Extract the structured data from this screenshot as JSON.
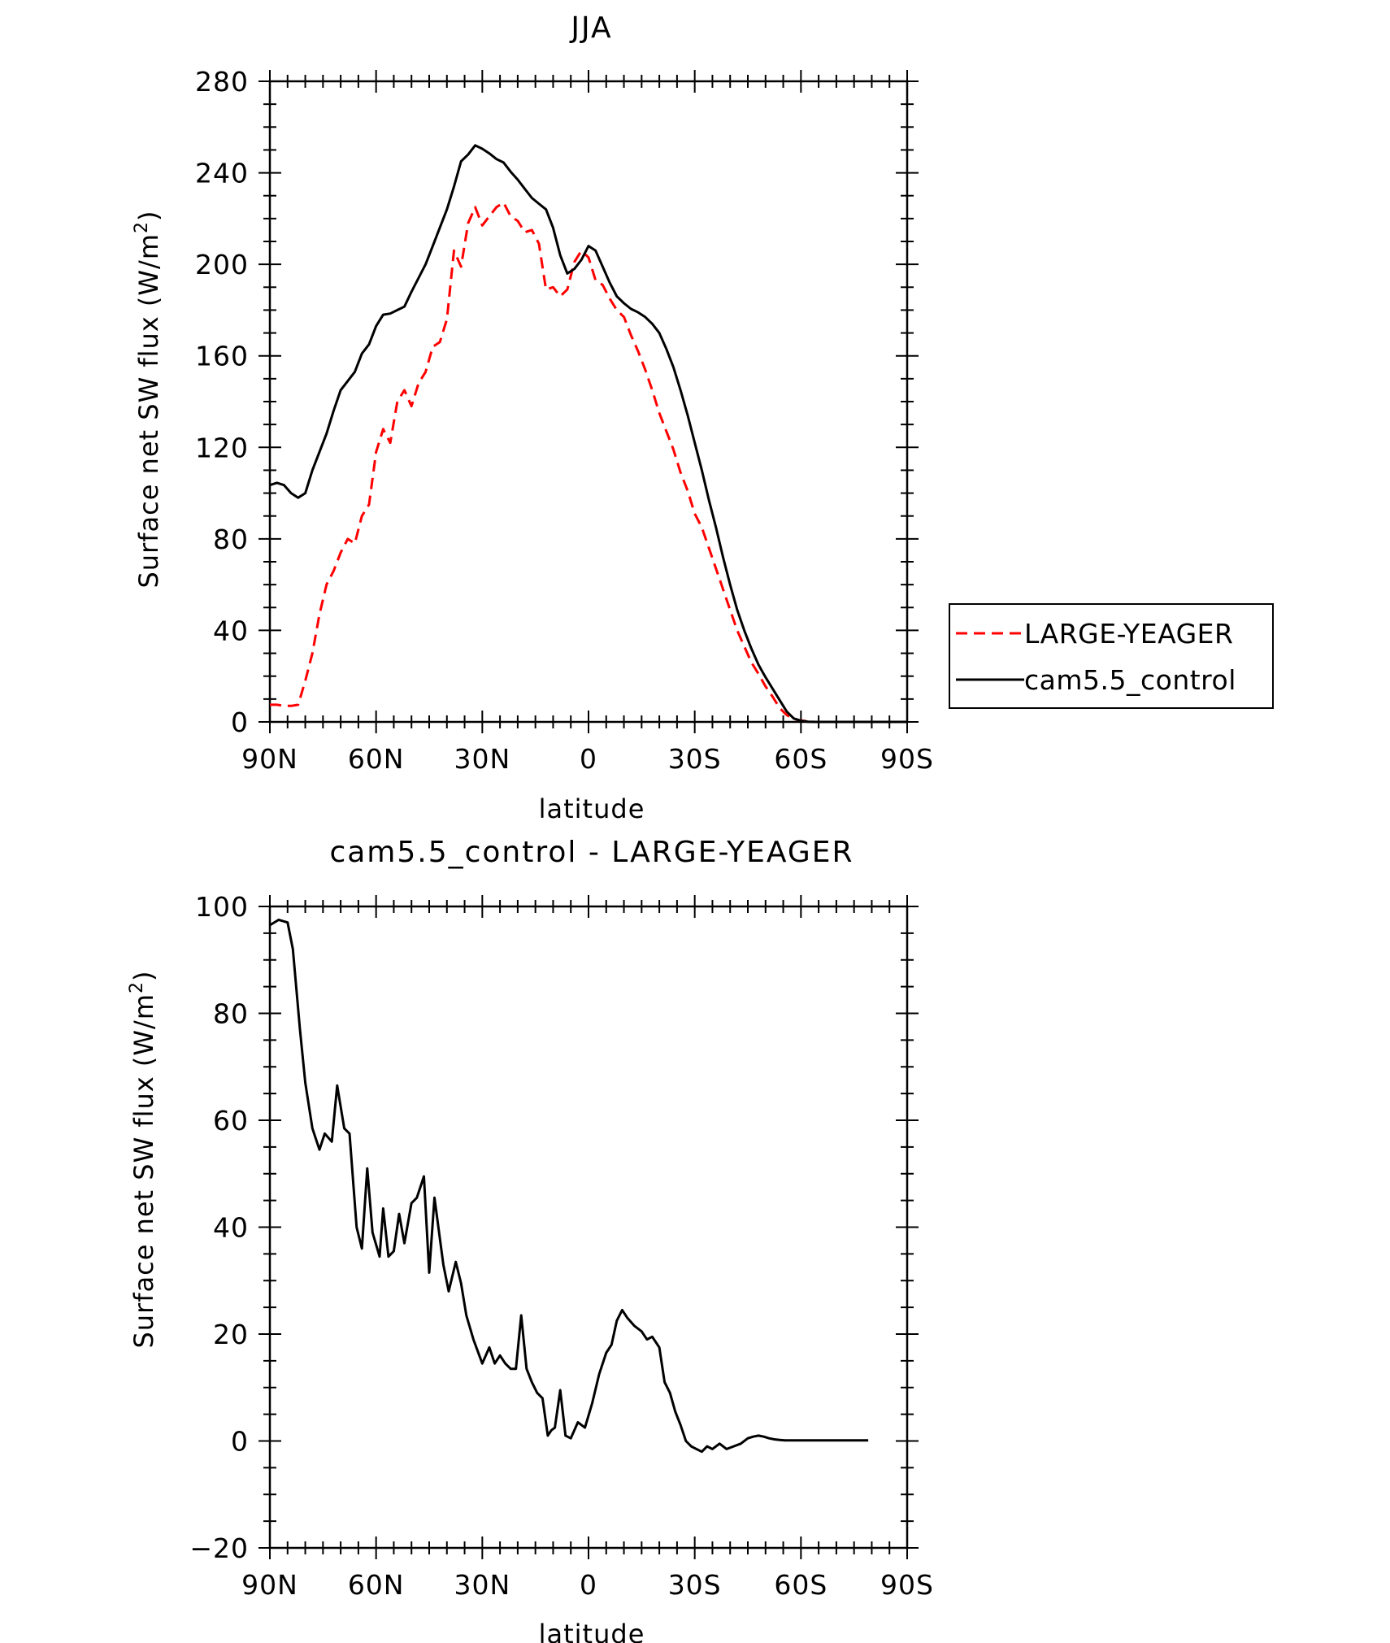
{
  "chart_data": [
    {
      "type": "line",
      "title": "JJA",
      "xlabel": "latitude",
      "ylabel": "Surface net SW flux (W/m",
      "ylabel_sup": "2",
      "ylabel_close": ")",
      "xlim": [
        90,
        -90
      ],
      "ylim": [
        0,
        280
      ],
      "xticks": [
        90,
        60,
        30,
        0,
        -30,
        -60,
        -90
      ],
      "xtick_labels": [
        "90N",
        "60N",
        "30N",
        "0",
        "30S",
        "60S",
        "90S"
      ],
      "yticks": [
        0,
        40,
        80,
        120,
        160,
        200,
        240,
        280
      ],
      "ytick_labels": [
        "0",
        "40",
        "80",
        "120",
        "160",
        "200",
        "240",
        "280"
      ],
      "legend": {
        "placement": "right",
        "entries": [
          "LARGE-YEAGER",
          "cam5.5_control"
        ]
      },
      "series": [
        {
          "name": "LARGE-YEAGER",
          "color": "#ff0000",
          "dash": "dashed",
          "x": [
            90,
            88,
            86,
            84,
            82,
            80,
            78,
            76,
            74,
            72,
            70,
            68,
            66,
            64,
            62,
            60,
            58,
            56,
            54,
            52,
            50,
            48,
            46,
            44,
            42,
            40,
            38,
            36,
            34,
            32,
            30,
            28,
            26,
            24,
            22,
            20,
            18,
            16,
            14,
            12,
            10,
            8,
            6,
            4,
            2,
            0,
            -2,
            -4,
            -6,
            -8,
            -10,
            -12,
            -14,
            -16,
            -18,
            -20,
            -22,
            -24,
            -26,
            -28,
            -30,
            -32,
            -34,
            -36,
            -38,
            -40,
            -42,
            -44,
            -46,
            -48,
            -50,
            -52,
            -54,
            -56,
            -58,
            -60,
            -62,
            -64,
            -66,
            -68,
            -70,
            -72,
            -74,
            -76,
            -78,
            -80,
            -82,
            -84,
            -86,
            -88,
            -90
          ],
          "y": [
            7.5,
            7.5,
            7,
            7,
            7.5,
            18,
            30,
            47,
            60,
            66,
            74,
            80,
            78,
            90,
            95,
            118,
            128,
            122,
            140,
            145,
            138,
            148,
            153,
            164,
            166,
            176,
            206,
            199,
            218,
            225,
            217,
            221,
            225,
            227,
            221,
            219,
            214,
            215,
            209,
            189,
            190,
            186,
            189,
            201,
            206,
            203,
            193,
            191,
            185,
            180,
            177,
            169,
            162,
            154,
            145,
            135,
            127,
            119,
            109,
            101,
            91,
            85,
            76,
            67,
            58,
            49,
            40,
            33,
            26,
            21,
            15.5,
            11,
            6,
            3,
            1.3,
            0.6,
            0.2,
            0,
            0,
            0,
            0,
            0,
            0,
            0,
            0,
            0,
            0,
            0,
            0,
            0,
            0
          ]
        },
        {
          "name": "cam5.5_control",
          "color": "#000000",
          "dash": "solid",
          "x": [
            90,
            88,
            86,
            84,
            82,
            80,
            78,
            76,
            74,
            72,
            70,
            68,
            66,
            64,
            62,
            60,
            58,
            56,
            54,
            52,
            50,
            48,
            46,
            44,
            42,
            40,
            38,
            36,
            34,
            32,
            30,
            28,
            26,
            24,
            22,
            20,
            18,
            16,
            14,
            12,
            10,
            8,
            6,
            4,
            2,
            0,
            -2,
            -4,
            -6,
            -8,
            -10,
            -12,
            -14,
            -16,
            -18,
            -20,
            -22,
            -24,
            -26,
            -28,
            -30,
            -32,
            -34,
            -36,
            -38,
            -40,
            -42,
            -44,
            -46,
            -48,
            -50,
            -52,
            -54,
            -56,
            -58,
            -60,
            -62,
            -64,
            -66,
            -68,
            -70,
            -72,
            -74,
            -76,
            -78,
            -80,
            -82,
            -84,
            -86,
            -88,
            -90
          ],
          "y": [
            103.5,
            104.5,
            103.5,
            100,
            98,
            100,
            110,
            118,
            126,
            136,
            145,
            149,
            153,
            161,
            165,
            173,
            178,
            178.5,
            180,
            181.5,
            188,
            194,
            200,
            208,
            216,
            224,
            234,
            245,
            248,
            252,
            250.5,
            248.5,
            246,
            244.5,
            240.5,
            237,
            233,
            229,
            226.5,
            224,
            216,
            204,
            196,
            198,
            202,
            208,
            206,
            199,
            192,
            186,
            183,
            180.5,
            179,
            177,
            174,
            170,
            163,
            155,
            145,
            134,
            122,
            110,
            97,
            85,
            72,
            60,
            49,
            40,
            32,
            25,
            19.5,
            14.5,
            9.5,
            4.5,
            1.5,
            0.5,
            0.1,
            0,
            0,
            0,
            0,
            0,
            0,
            0,
            0,
            0,
            0,
            0,
            0,
            0,
            0
          ]
        }
      ]
    },
    {
      "type": "line",
      "title": "cam5.5_control - LARGE-YEAGER",
      "xlabel": "latitude",
      "ylabel": "Surface net SW flux (W/m",
      "ylabel_sup": "2",
      "ylabel_close": ")",
      "xlim": [
        90,
        -90
      ],
      "ylim": [
        -20,
        100
      ],
      "xticks": [
        90,
        60,
        30,
        0,
        -30,
        -60,
        -90
      ],
      "xtick_labels": [
        "90N",
        "60N",
        "30N",
        "0",
        "30S",
        "60S",
        "90S"
      ],
      "yticks": [
        -20,
        0,
        20,
        40,
        60,
        80,
        100
      ],
      "ytick_labels": [
        "−20",
        "0",
        "20",
        "40",
        "60",
        "80",
        "100"
      ],
      "series": [
        {
          "color": "#000000",
          "dash": "solid",
          "x": [
            90,
            87.5,
            85,
            83.5,
            81.5,
            80,
            78,
            76,
            74.5,
            72.5,
            71,
            69,
            67.5,
            65.5,
            64,
            62.5,
            61,
            59,
            58,
            56.5,
            55,
            53.5,
            52,
            50,
            48.5,
            46.5,
            45,
            43.5,
            41,
            39.5,
            37.5,
            36,
            34.5,
            32.5,
            30,
            28,
            26.5,
            25,
            23.5,
            22,
            20.5,
            19,
            17.5,
            16,
            14.5,
            13,
            11.5,
            10.5,
            9.5,
            8,
            6.5,
            5,
            3,
            1,
            -1,
            -3,
            -5,
            -6.5,
            -8,
            -9.5,
            -11,
            -13,
            -15,
            -16.5,
            -18,
            -20,
            -21.5,
            -23,
            -24.5,
            -26,
            -27.5,
            -29,
            -30.5,
            -32,
            -33.5,
            -35,
            -37,
            -39,
            -41,
            -43,
            -45,
            -46.5,
            -48,
            -49.5,
            -51,
            -52.5,
            -54,
            -55.5,
            -57,
            -58.5,
            -60,
            -61.5,
            -63,
            -64.5,
            -66,
            -68,
            -70,
            -72,
            -74,
            -76,
            -78,
            -79
          ],
          "y": [
            96.5,
            97.5,
            97,
            92,
            77,
            67,
            58.5,
            54.5,
            57.5,
            56,
            66.5,
            58.5,
            57.5,
            40,
            36,
            51,
            39,
            34.5,
            43.5,
            34.5,
            35.5,
            42.5,
            37,
            44.5,
            45.5,
            49.5,
            31.5,
            45.5,
            33,
            28,
            33.5,
            29.5,
            23.5,
            19,
            14.5,
            17.5,
            14.5,
            16,
            14.5,
            13.5,
            13.5,
            23.5,
            13.5,
            11,
            9,
            8,
            1,
            2,
            2.5,
            9.5,
            1,
            0.5,
            3.5,
            2.5,
            7,
            12.5,
            16.5,
            18,
            22.5,
            24.5,
            23,
            21.5,
            20.5,
            19,
            19.5,
            17.5,
            11,
            9,
            5.5,
            3,
            0,
            -1,
            -1.5,
            -2,
            -1,
            -1.5,
            -0.5,
            -1.5,
            -1,
            -0.5,
            0.5,
            0.8,
            1,
            0.8,
            0.5,
            0.3,
            0.2,
            0.1,
            0.1,
            0.1,
            0.1,
            0.1,
            0.1,
            0.1,
            0.1,
            0.1,
            0.1,
            0.1,
            0.1,
            0.1,
            0.1,
            0.1
          ]
        }
      ]
    }
  ]
}
